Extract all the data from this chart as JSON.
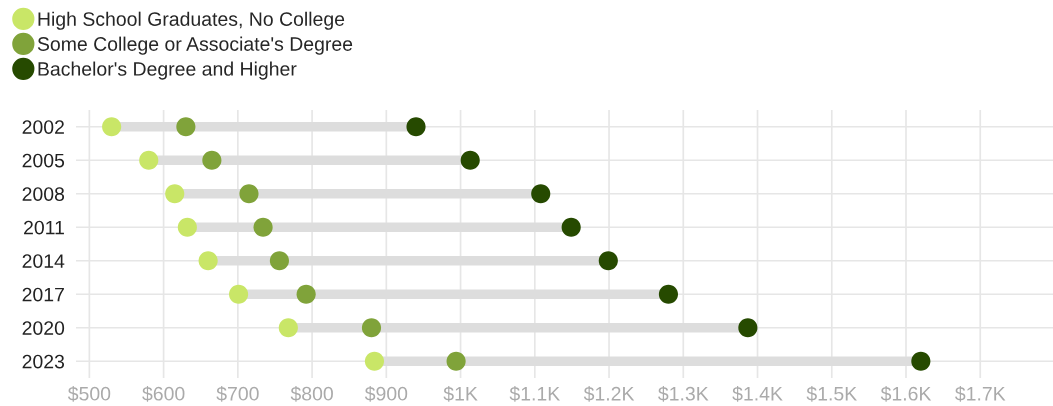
{
  "chart_data": {
    "type": "scatter",
    "orientation": "horizontal",
    "categories": [
      "2002",
      "2005",
      "2008",
      "2011",
      "2014",
      "2017",
      "2020",
      "2023"
    ],
    "series": [
      {
        "name": "High School Graduates, No College",
        "color": "#c9e667",
        "values": [
          530,
          580,
          615,
          632,
          660,
          701,
          768,
          884
        ]
      },
      {
        "name": "Some College or Associate's Degree",
        "color": "#80a33a",
        "values": [
          630,
          665,
          715,
          734,
          756,
          792,
          880,
          994
        ]
      },
      {
        "name": "Bachelor's Degree and Higher",
        "color": "#264a00",
        "values": [
          940,
          1013,
          1108,
          1149,
          1199,
          1280,
          1387,
          1620
        ]
      }
    ],
    "xlim": [
      482,
      1798
    ],
    "xticks": [
      {
        "value": 500,
        "label": "$500"
      },
      {
        "value": 600,
        "label": "$600"
      },
      {
        "value": 700,
        "label": "$700"
      },
      {
        "value": 800,
        "label": "$800"
      },
      {
        "value": 900,
        "label": "$900"
      },
      {
        "value": 1000,
        "label": "$1K"
      },
      {
        "value": 1100,
        "label": "$1.1K"
      },
      {
        "value": 1200,
        "label": "$1.2K"
      },
      {
        "value": 1300,
        "label": "$1.3K"
      },
      {
        "value": 1400,
        "label": "$1.4K"
      },
      {
        "value": 1500,
        "label": "$1.5K"
      },
      {
        "value": 1600,
        "label": "$1.6K"
      },
      {
        "value": 1700,
        "label": "$1.7K"
      }
    ],
    "grid": true,
    "legend": "top left",
    "marker": "circle"
  }
}
